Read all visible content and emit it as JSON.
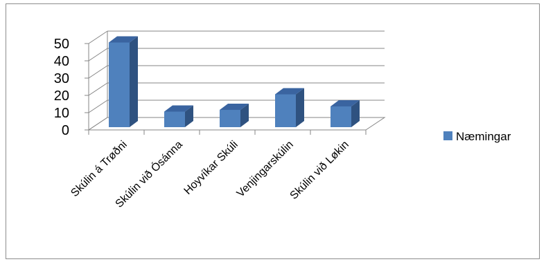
{
  "chart_data": {
    "type": "bar",
    "style": "3d-column",
    "categories": [
      "Skúlin á Trøðni",
      "Skúlin við Ósánna",
      "Hoyvíkar Skúli",
      "Venjingarskúlin",
      "Skúlin við Løkin"
    ],
    "series": [
      {
        "name": "Næmingar",
        "values": [
          49,
          9,
          10,
          19,
          12
        ]
      }
    ],
    "yticks": [
      0,
      10,
      20,
      30,
      40,
      50
    ],
    "ylim": [
      0,
      50
    ],
    "grid": true,
    "legend": "right",
    "colors": {
      "bar_front": "#4f81bd",
      "bar_side": "#2f5280",
      "bar_top": "#3a64a0",
      "gridline": "#868686"
    }
  }
}
